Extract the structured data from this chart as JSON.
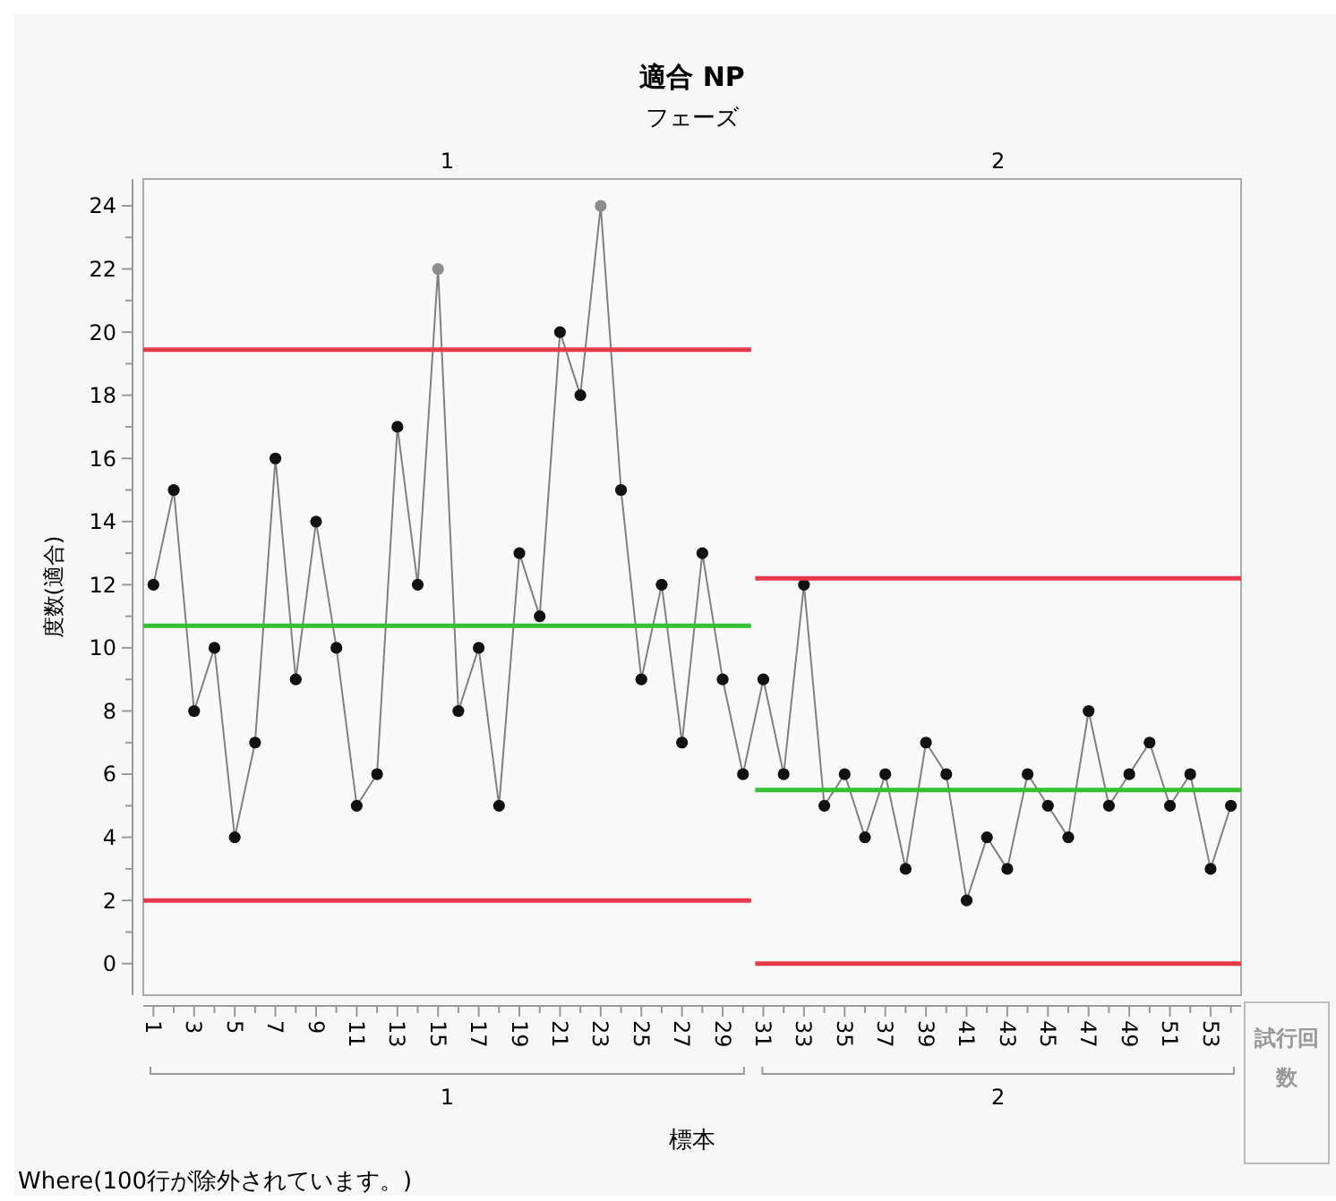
{
  "chart_data": {
    "type": "line",
    "title": "適合  NP",
    "subtitle": "フェーズ",
    "xlabel": "標本",
    "ylabel": "度数(適合)",
    "x": [
      1,
      2,
      3,
      4,
      5,
      6,
      7,
      8,
      9,
      10,
      11,
      12,
      13,
      14,
      15,
      16,
      17,
      18,
      19,
      20,
      21,
      22,
      23,
      24,
      25,
      26,
      27,
      28,
      29,
      30,
      31,
      32,
      33,
      34,
      35,
      36,
      37,
      38,
      39,
      40,
      41,
      42,
      43,
      44,
      45,
      46,
      47,
      48,
      49,
      50,
      51,
      52,
      53,
      54
    ],
    "series": [
      {
        "color": "#808080",
        "marker": "circle",
        "colors": [
          "#111111",
          "#111111",
          "#111111",
          "#111111",
          "#111111",
          "#111111",
          "#111111",
          "#111111",
          "#111111",
          "#111111",
          "#111111",
          "#111111",
          "#111111",
          "#111111",
          "#8c8c8c",
          "#111111",
          "#111111",
          "#111111",
          "#111111",
          "#111111",
          "#111111",
          "#111111",
          "#8c8c8c",
          "#111111",
          "#111111",
          "#111111",
          "#111111",
          "#111111",
          "#111111",
          "#111111",
          "#111111",
          "#111111",
          "#111111",
          "#111111",
          "#111111",
          "#111111",
          "#111111",
          "#111111",
          "#111111",
          "#111111",
          "#111111",
          "#111111",
          "#111111",
          "#111111",
          "#111111",
          "#111111",
          "#111111",
          "#111111",
          "#111111",
          "#111111",
          "#111111",
          "#111111",
          "#111111",
          "#111111"
        ],
        "values": [
          12,
          15,
          8,
          10,
          4,
          7,
          16,
          9,
          14,
          10,
          5,
          6,
          17,
          12,
          22,
          8,
          10,
          5,
          13,
          11,
          20,
          18,
          24,
          15,
          9,
          12,
          7,
          13,
          9,
          6,
          9,
          6,
          12,
          5,
          6,
          4,
          6,
          3,
          7,
          6,
          2,
          4,
          3,
          6,
          5,
          4,
          8,
          5,
          6,
          7,
          5,
          6,
          3,
          5
        ]
      },
      {
        "color": "#e8394a",
        "marker": "none",
        "x": [
          0.5,
          30.4
        ],
        "values": [
          19.44,
          19.44
        ]
      },
      {
        "color": "#33c033",
        "marker": "none",
        "x": [
          0.5,
          30.4
        ],
        "values": [
          10.7,
          10.7
        ]
      },
      {
        "color": "#e8394a",
        "marker": "none",
        "x": [
          0.5,
          30.4
        ],
        "values": [
          2,
          2
        ]
      },
      {
        "color": "#e8394a",
        "marker": "none",
        "x": [
          30.6,
          54.5
        ],
        "values": [
          12.2,
          12.2
        ]
      },
      {
        "color": "#33c033",
        "marker": "none",
        "x": [
          30.6,
          54.5
        ],
        "values": [
          5.5,
          5.5
        ]
      },
      {
        "color": "#e8394a",
        "marker": "none",
        "x": [
          30.6,
          54.5
        ],
        "values": [
          0,
          0
        ]
      }
    ],
    "xlim": [
      0.5,
      54.5
    ],
    "xticks": [
      1,
      {
        "value": 2,
        "label": null
      },
      3,
      {
        "value": 4,
        "label": null
      },
      5,
      {
        "value": 6,
        "label": null
      },
      7,
      {
        "value": 8,
        "label": null
      },
      9,
      {
        "value": 10,
        "label": null
      },
      11,
      {
        "value": 12,
        "label": null
      },
      13,
      {
        "value": 14,
        "label": null
      },
      15,
      {
        "value": 16,
        "label": null
      },
      17,
      {
        "value": 18,
        "label": null
      },
      19,
      {
        "value": 20,
        "label": null
      },
      21,
      {
        "value": 22,
        "label": null
      },
      23,
      {
        "value": 24,
        "label": null
      },
      25,
      {
        "value": 26,
        "label": null
      },
      27,
      {
        "value": 28,
        "label": null
      },
      29,
      {
        "value": 30,
        "label": null
      },
      31,
      {
        "value": 32,
        "label": null
      },
      33,
      {
        "value": 34,
        "label": null
      },
      35,
      {
        "value": 36,
        "label": null
      },
      37,
      {
        "value": 38,
        "label": null
      },
      39,
      {
        "value": 40,
        "label": null
      },
      41,
      {
        "value": 42,
        "label": null
      },
      43,
      {
        "value": 44,
        "label": null
      },
      45,
      {
        "value": 46,
        "label": null
      },
      47,
      {
        "value": 48,
        "label": null
      },
      49,
      {
        "value": 50,
        "label": null
      },
      51,
      {
        "value": 52,
        "label": null
      },
      53,
      {
        "value": 54,
        "label": null
      }
    ],
    "ylim": [
      -1,
      24.85
    ],
    "yticks": [
      0,
      {
        "value": 1,
        "label": null
      },
      2,
      {
        "value": 3,
        "label": null
      },
      4,
      {
        "value": 5,
        "label": null
      },
      6,
      {
        "value": 7,
        "label": null
      },
      8,
      {
        "value": 9,
        "label": null
      },
      10,
      {
        "value": 11,
        "label": null
      },
      12,
      {
        "value": 13,
        "label": null
      },
      14,
      {
        "value": 15,
        "label": null
      },
      16,
      {
        "value": 17,
        "label": null
      },
      18,
      {
        "value": 19,
        "label": null
      },
      20,
      {
        "value": 21,
        "label": null
      },
      22,
      {
        "value": 23,
        "label": null
      },
      24
    ],
    "annotations": [
      "1",
      "2",
      "1",
      "2",
      "試行回数",
      "Where(100行が除外されています。)"
    ],
    "grid": false,
    "line_style": "solid"
  }
}
